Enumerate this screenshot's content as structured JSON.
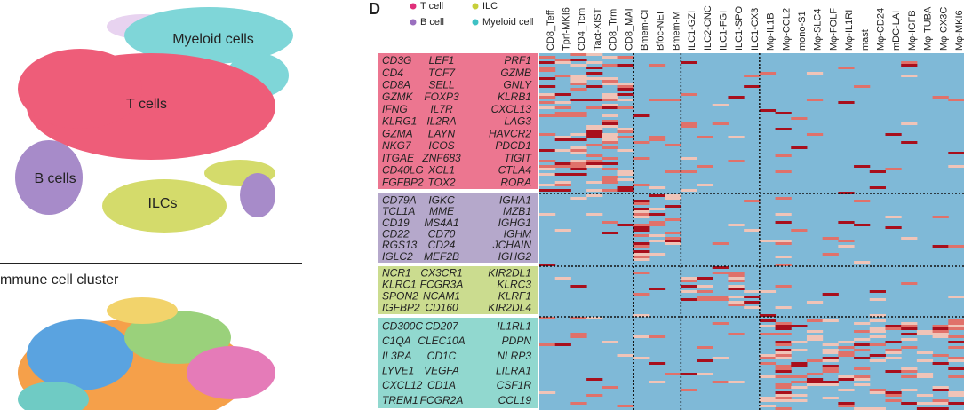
{
  "umap": {
    "labels": [
      "Myeloid cells",
      "T cells",
      "B cells",
      "ILCs"
    ],
    "section_title": "mmune cell cluster"
  },
  "panel_label": "D",
  "legend": [
    "T cell",
    "ILC",
    "B cell",
    "Myeloid cell"
  ],
  "columns": [
    "CD8_Teff",
    "Tprf-MKI6",
    "CD4_Tcm",
    "Tact-XIST",
    "CD8_Trm",
    "CD8_MAI",
    "Bmem-CI",
    "Bfoc-NEI",
    "Bmem-M",
    "ILC1-GZI",
    "ILC2-CNC",
    "ILC1-FGI",
    "ILC1-SPO",
    "ILC1-CX3",
    "Mφ-IL1B",
    "Mφ-CCL2",
    "mono-S1",
    "Mφ-SLC4",
    "Mφ-FOLF",
    "Mφ-IL1RI",
    "mast",
    "Mφ-CD24",
    "mDC-LAI",
    "Mφ-IGFB",
    "Mφ-TUBA",
    "Mφ-CX3C",
    "Mφ-MKI6"
  ],
  "gene_groups": [
    {
      "genes": [
        [
          "CD3G",
          "LEF1",
          "PRF1"
        ],
        [
          "CD4",
          "TCF7",
          "GZMB"
        ],
        [
          "CD8A",
          "SELL",
          "GNLY"
        ],
        [
          "GZMK",
          "FOXP3",
          "KLRB1"
        ],
        [
          "IFNG",
          "IL7R",
          "CXCL13"
        ],
        [
          "KLRG1",
          "IL2RA",
          "LAG3"
        ],
        [
          "GZMA",
          "LAYN",
          "HAVCR2"
        ],
        [
          "NKG7",
          "ICOS",
          "PDCD1"
        ],
        [
          "ITGAE",
          "ZNF683",
          "TIGIT"
        ],
        [
          "CD40LG",
          "XCL1",
          "CTLA4"
        ],
        [
          "FGFBP2",
          "TOX2",
          "RORA"
        ]
      ]
    },
    {
      "genes": [
        [
          "CD79A",
          "IGKC",
          "IGHA1"
        ],
        [
          "TCL1A",
          "MME",
          "MZB1"
        ],
        [
          "CD19",
          "MS4A1",
          "IGHG1"
        ],
        [
          "CD22",
          "CD70",
          "IGHM"
        ],
        [
          "RGS13",
          "CD24",
          "JCHAIN"
        ],
        [
          "IGLC2",
          "MEF2B",
          "IGHG2"
        ]
      ]
    },
    {
      "genes": [
        [
          "NCR1",
          "CX3CR1",
          "KIR2DL1"
        ],
        [
          "KLRC1",
          "FCGR3A",
          "KLRC3"
        ],
        [
          "SPON2",
          "NCAM1",
          "KLRF1"
        ],
        [
          "IGFBP2",
          "CD160",
          "KIR2DL4"
        ]
      ]
    },
    {
      "genes": [
        [
          "CD300C",
          "CD207",
          "IL1RL1"
        ],
        [
          "C1QA",
          "CLEC10A",
          "PDPN"
        ],
        [
          "IL3RA",
          "CD1C",
          "NLRP3"
        ],
        [
          "LYVE1",
          "VEGFA",
          "LILRA1"
        ],
        [
          "CXCL12",
          "CD1A",
          "CSF1R"
        ],
        [
          "TREM1",
          "FCGR2A",
          "CCL19"
        ]
      ]
    }
  ]
}
